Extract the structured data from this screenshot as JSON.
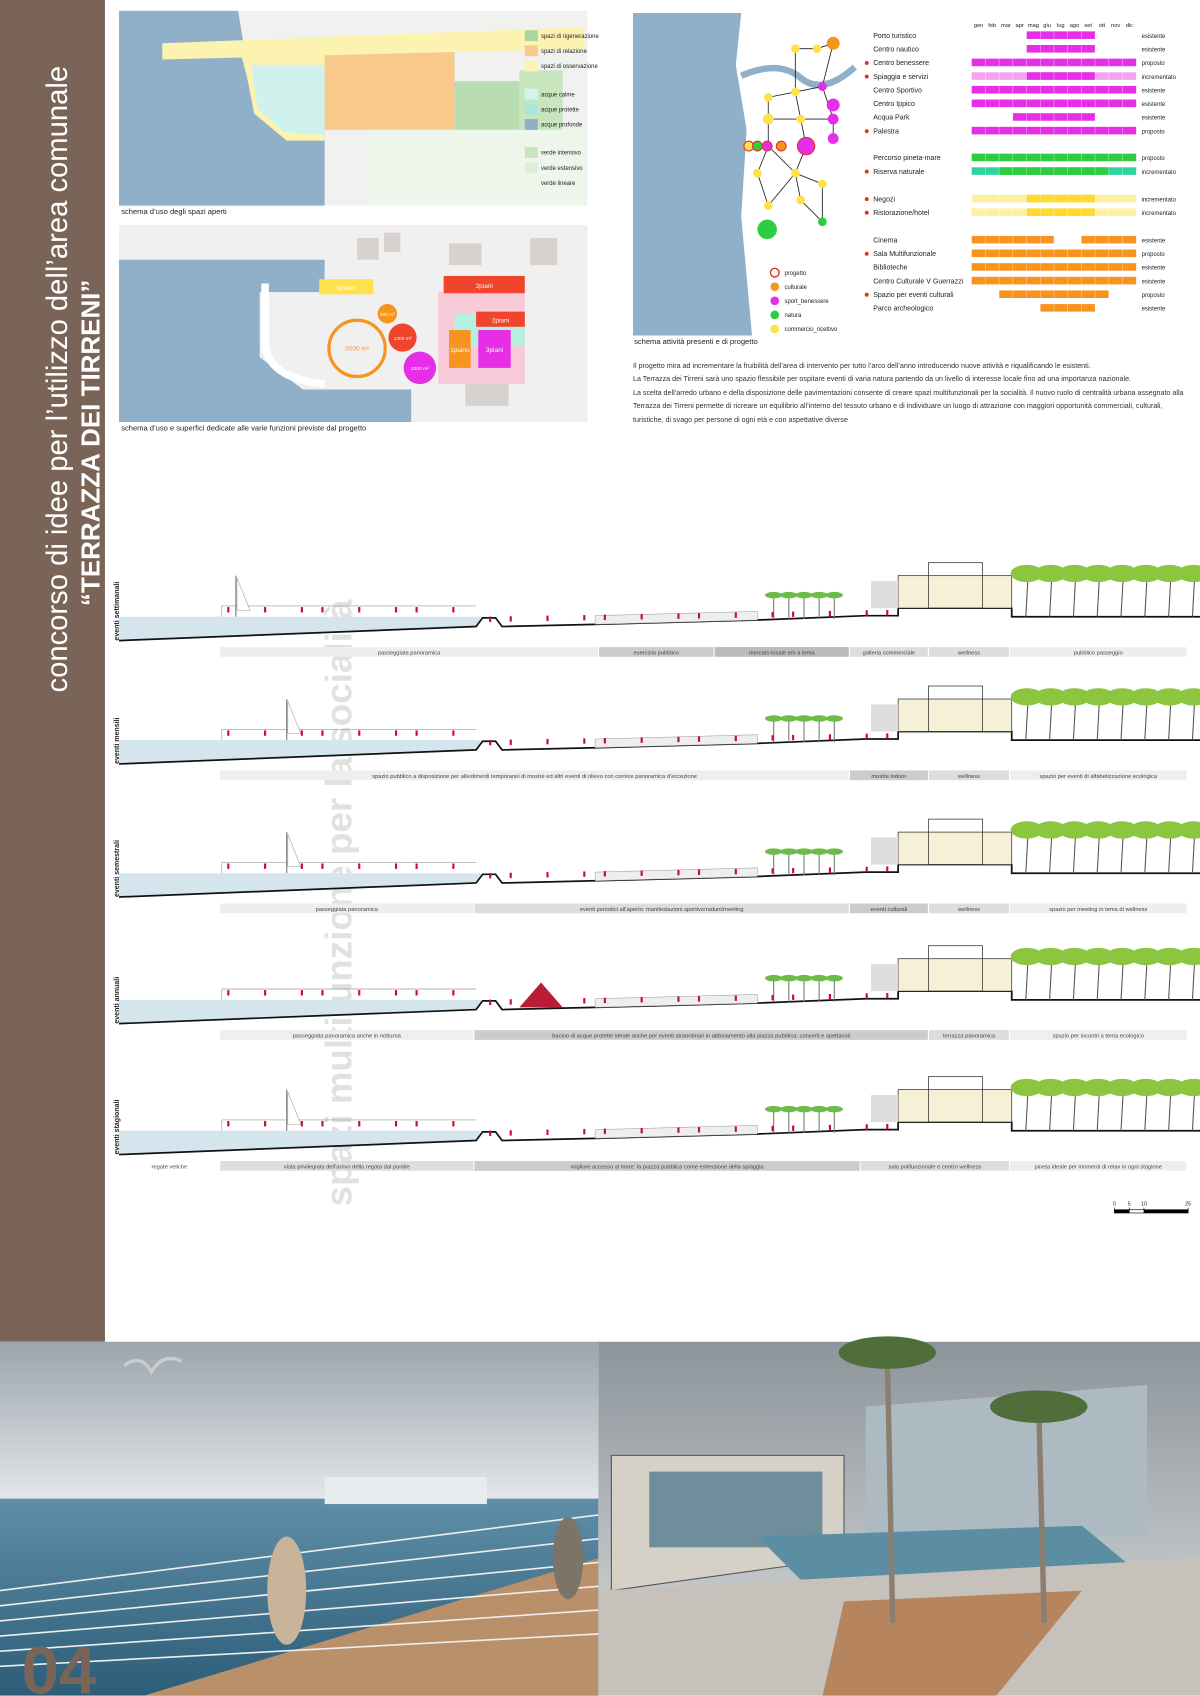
{
  "header": {
    "title": "concorso di idee per l’utilizzo dell’area comunale",
    "subtitle": "“TERRAZZA DEI TIRRENI”",
    "page_number": "04",
    "watermark": "spazi multifunzione per la socialità"
  },
  "map_open_spaces": {
    "caption": "schema d’uso degli spazi aperti",
    "legend": [
      {
        "label": "spazi di rigenerazione",
        "color": "#a8d5a0"
      },
      {
        "label": "spazi di relazione",
        "color": "#f9c98b"
      },
      {
        "label": "spazi di osservazione",
        "color": "#fdf3b0"
      },
      {
        "label": "acque calme",
        "color": "#d2f4ef"
      },
      {
        "label": "acque protette",
        "color": "#a9e6dc"
      },
      {
        "label": "acque profonde",
        "color": "#8fb0c8"
      },
      {
        "label": "verde intensivo",
        "color": "#c7e6be"
      },
      {
        "label": "verde estensivo",
        "color": "#dcefd6"
      },
      {
        "label": "verde lineare",
        "color": "#eaf6e6"
      }
    ]
  },
  "map_functions": {
    "caption": "schema d’uso e superfici dedicate alle varie funzioni previste dal progetto",
    "labels": [
      "1piano",
      "2piani",
      "2piani",
      "1piano",
      "3piani",
      "5000 m²",
      "1300 m²",
      "2200 m²",
      "300 m²"
    ]
  },
  "activity_diagram": {
    "caption": "schema attività presenti e di progetto",
    "legend": [
      {
        "label": "progetto",
        "color": "#e0302a"
      },
      {
        "label": "culturale",
        "color": "#f7941d"
      },
      {
        "label": "sport_benessere",
        "color": "#e62ee6"
      },
      {
        "label": "natura",
        "color": "#2ecc40"
      },
      {
        "label": "commercio_ricettivo",
        "color": "#ffe14d"
      }
    ]
  },
  "calendar": {
    "months": [
      "gen",
      "feb",
      "mar",
      "apr",
      "mag",
      "giu",
      "lug",
      "ago",
      "set",
      "ott",
      "nov",
      "dic"
    ],
    "groups": [
      {
        "rows": [
          {
            "name": "Porto turistico",
            "status": "esistente",
            "marker": false,
            "color": "#e62ee6",
            "spans": [
              [
                5,
                9
              ]
            ]
          },
          {
            "name": "Centro nautico",
            "status": "esistente",
            "marker": false,
            "color": "#e62ee6",
            "spans": [
              [
                5,
                9
              ]
            ]
          },
          {
            "name": "Centro benessere",
            "status": "proposto",
            "marker": true,
            "color": "#e62ee6",
            "spans": [
              [
                1,
                12
              ]
            ]
          },
          {
            "name": "Spiaggia e servizi",
            "status": "incrementato",
            "marker": true,
            "color": "#f4a3f0",
            "spans": [
              [
                1,
                12
              ]
            ],
            "strong": [
              [
                5,
                9
              ]
            ],
            "strong_color": "#e62ee6"
          },
          {
            "name": "Centro Sportivo",
            "status": "esistente",
            "marker": false,
            "color": "#e62ee6",
            "spans": [
              [
                1,
                12
              ]
            ]
          },
          {
            "name": "Centro Ippico",
            "status": "esistente",
            "marker": false,
            "color": "#e62ee6",
            "spans": [
              [
                1,
                12
              ]
            ]
          },
          {
            "name": "Acqua Park",
            "status": "esistente",
            "marker": false,
            "color": "#e62ee6",
            "spans": [
              [
                4,
                9
              ]
            ]
          },
          {
            "name": "Palestra",
            "status": "proposto",
            "marker": true,
            "color": "#e62ee6",
            "spans": [
              [
                1,
                12
              ]
            ]
          }
        ]
      },
      {
        "rows": [
          {
            "name": "Percorso pineta-mare",
            "status": "proposto",
            "marker": false,
            "color": "#2ecc40",
            "spans": [
              [
                1,
                12
              ]
            ]
          },
          {
            "name": "Riserva naturale",
            "status": "incrementato",
            "marker": true,
            "color": "#2dd4a0",
            "spans": [
              [
                1,
                12
              ]
            ],
            "strong": [
              [
                3,
                10
              ]
            ],
            "strong_color": "#2ecc40"
          }
        ]
      },
      {
        "rows": [
          {
            "name": "Negozi",
            "status": "incrementato",
            "marker": true,
            "color": "#fff0a0",
            "spans": [
              [
                1,
                12
              ]
            ],
            "strong": [
              [
                5,
                9
              ]
            ],
            "strong_color": "#ffd92e"
          },
          {
            "name": "Ristorazione/hotel",
            "status": "incrementato",
            "marker": true,
            "color": "#fff0a0",
            "spans": [
              [
                1,
                12
              ]
            ],
            "strong": [
              [
                5,
                9
              ]
            ],
            "strong_color": "#ffd92e"
          }
        ]
      },
      {
        "rows": [
          {
            "name": "Cinema",
            "status": "esistente",
            "marker": false,
            "color": "#f7941d",
            "spans": [
              [
                1,
                6
              ],
              [
                9,
                12
              ]
            ]
          },
          {
            "name": "Sala Multifunzionale",
            "status": "proposto",
            "marker": true,
            "color": "#f7941d",
            "spans": [
              [
                1,
                12
              ]
            ]
          },
          {
            "name": "Biblioteche",
            "status": "esistente",
            "marker": false,
            "color": "#f7941d",
            "spans": [
              [
                1,
                12
              ]
            ]
          },
          {
            "name": "Centro Culturale V Guerrazzi",
            "status": "esistente",
            "marker": false,
            "color": "#f7941d",
            "spans": [
              [
                1,
                12
              ]
            ]
          },
          {
            "name": "Spazio per eventi culturali",
            "status": "proposto",
            "marker": true,
            "color": "#f7941d",
            "spans": [
              [
                3,
                10
              ]
            ]
          },
          {
            "name": "Parco archeologico",
            "status": "esistente",
            "marker": false,
            "color": "#f7941d",
            "spans": [
              [
                6,
                9
              ]
            ]
          }
        ]
      }
    ]
  },
  "description": {
    "paragraphs": [
      "Il progetto mira ad incrementare la fruibilità dell’area di intervento per tutto l’arco dell’anno introducendo nuove attività e riqualificando le esistenti.",
      "La Terrazza dei Tirreni sarà uno spazio flessibile per ospitare eventi di varia natura partendo da un livello di interesse locale fino ad una importanza nazionale.",
      "La scelta dell’arredo urbano e della disposizione delle pavimentazioni consente di creare spazi multifunzionali per la socialità. Il nuovo ruolo di centralità urbana assegnato alla Terrazza dei Tirreni permette di ricreare un equilibrio all’interno del tessuto urbano e di individuare un luogo di attrazione con maggiori opportunità  commerciali, culturali, turistiche, di svago per  persone di ogni età e con aspettative diverse"
    ]
  },
  "sections": [
    {
      "label": "eventi settimanali",
      "strip": [
        "passeggiata panoramica",
        "esercizio pubblico",
        "mercato locale e/o a tema",
        "galleria commerciale",
        "wellness",
        "pubblico passeggio"
      ]
    },
    {
      "label": "eventi mensili",
      "strip": [
        "spazio pubblico a disposizione per allestimenti temporanei di mostre ed altri eventi di rilievo con cornice panoramica d’eccezione",
        "mostre indoor",
        "wellness",
        "spazio per eventi di alfabetizzazione ecologica"
      ]
    },
    {
      "label": "eventi semestrali",
      "strip": [
        "passeggiata panoramica",
        "eventi periodici all’aperto: manifestazioni sportive/raduni/meeting",
        "eventi culturali",
        "wellness",
        "spazio per meeting in tema di wellness"
      ]
    },
    {
      "label": "eventi annuali",
      "strip": [
        "passeggiata panoramica anche in notturna",
        "bacino di acque protette ideale anche per eventi straordinari in abbinamento alla piazza pubblica: concerti e spettacoli",
        "terrazza panoramica",
        "spazio per incontri a tema ecologico"
      ]
    },
    {
      "label": "eventi stagionali",
      "strip": [
        "regate veliche",
        "vista privilegiata dell’arrivo della regata dal pontile",
        "migliore accesso al mare: la piazza pubblica come estensione della spiaggia",
        "sala polifunzionale e centro wellness",
        "pineta ideale per momenti di relax in ogni stagione"
      ]
    }
  ],
  "scale_bar": {
    "ticks": [
      0,
      5,
      10,
      25
    ]
  }
}
